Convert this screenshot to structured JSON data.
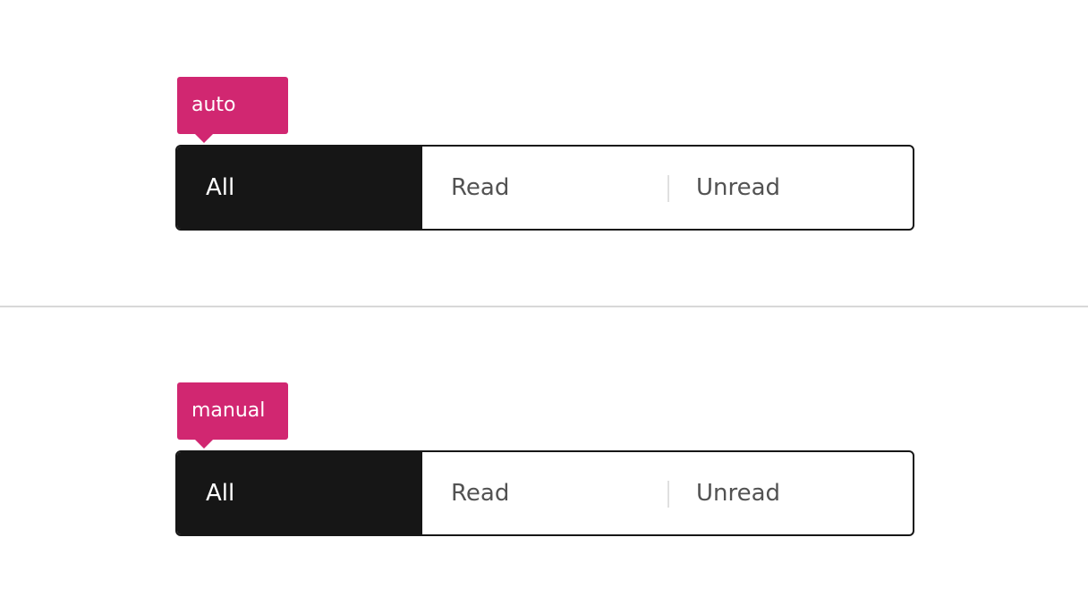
{
  "sections": [
    {
      "tag_label": "auto",
      "switches": [
        {
          "label": "All",
          "selected": true
        },
        {
          "label": "Read",
          "selected": false
        },
        {
          "label": "Unread",
          "selected": false
        }
      ]
    },
    {
      "tag_label": "manual",
      "switches": [
        {
          "label": "All",
          "selected": true
        },
        {
          "label": "Read",
          "selected": false
        },
        {
          "label": "Unread",
          "selected": false
        }
      ]
    }
  ],
  "colors": {
    "tag": "#d12771",
    "selected_bg": "#161616",
    "border": "#161616",
    "text_unselected": "#525252",
    "separator": "#e0e0e0",
    "divider": "#d8d8d8"
  }
}
